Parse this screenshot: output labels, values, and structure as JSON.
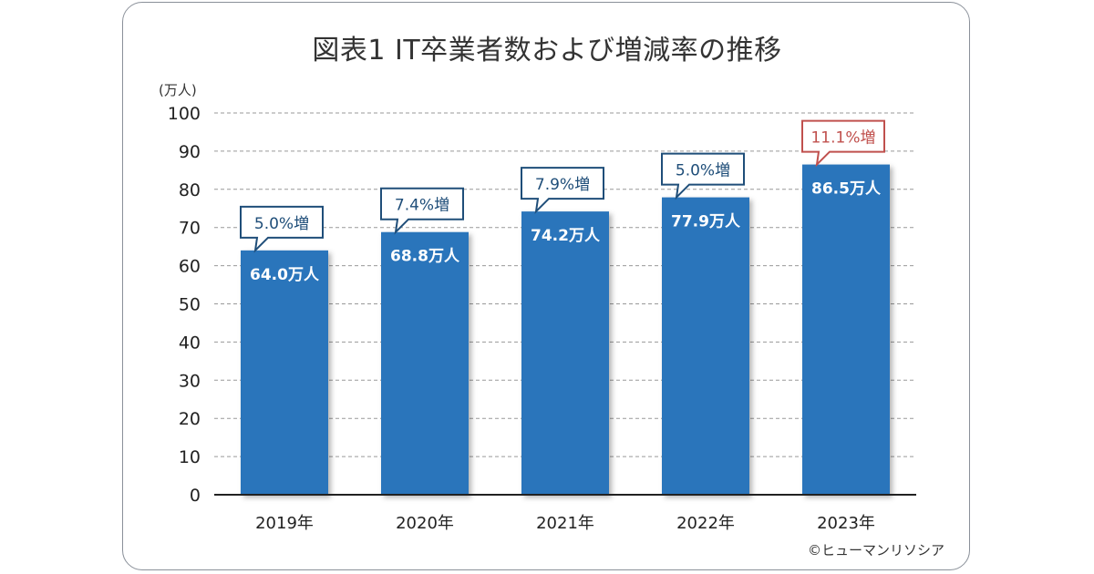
{
  "chart_data": {
    "type": "bar",
    "title": "図表1 IT卒業者数および増減率の推移",
    "ylabel": "(万人)",
    "xlabel": "",
    "ylim": [
      0,
      100
    ],
    "yticks": [
      0,
      10,
      20,
      30,
      40,
      50,
      60,
      70,
      80,
      90,
      100
    ],
    "grid": true,
    "categories": [
      "2019年",
      "2020年",
      "2021年",
      "2022年",
      "2023年"
    ],
    "values": [
      64.0,
      68.8,
      74.2,
      77.9,
      86.5
    ],
    "value_labels": [
      "64.0万人",
      "68.8万人",
      "74.2万人",
      "77.9万人",
      "86.5万人"
    ],
    "growth_labels": [
      "5.0%増",
      "7.4%増",
      "7.9%増",
      "5.0%増",
      "11.1%増"
    ],
    "highlight_index": 4,
    "colors": {
      "bar": "#2a74bb",
      "callout": "#1f4e79",
      "highlight_callout": "#c0504d"
    }
  },
  "credit": "©ヒューマンリソシア"
}
